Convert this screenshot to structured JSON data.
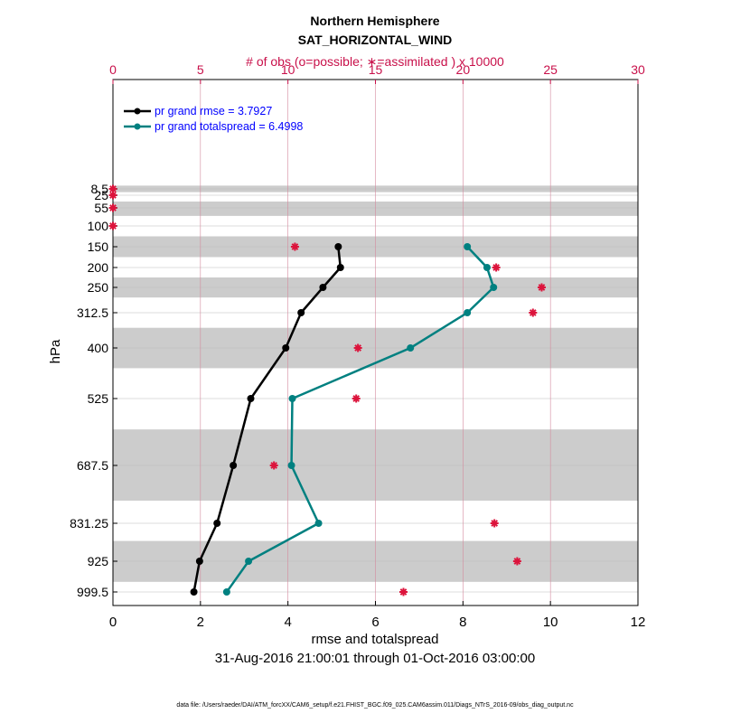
{
  "chart_data": {
    "type": "line",
    "title": "Northern Hemisphere",
    "subtitle": "SAT_HORIZONTAL_WIND",
    "top_axis_label": "# of obs (o=possible; ∗=assimilated ) x 10000",
    "xlabel": "rmse and totalspread",
    "ylabel": "hPa",
    "date_range": "31-Aug-2016 21:00:01 through 01-Oct-2016 03:00:00",
    "footnote": "data file: /Users/raeder/DAI/ATM_forcXX/CAM6_setup/f.e21.FHIST_BGC.f09_025.CAM6assim.011/Diags_NTrS_2016-09/obs_diag_output.nc",
    "xlim": [
      0,
      12
    ],
    "xticks": [
      "0",
      "2",
      "4",
      "6",
      "8",
      "10",
      "12"
    ],
    "top_xlim": [
      0,
      30
    ],
    "top_xticks": [
      "0",
      "5",
      "10",
      "15",
      "20",
      "25",
      "30"
    ],
    "levels": [
      "8.5",
      "25",
      "55",
      "100",
      "150",
      "200",
      "250",
      "312.5",
      "400",
      "525",
      "687.5",
      "831.25",
      "925",
      "999.5"
    ],
    "level_values": [
      8.5,
      25,
      55,
      100,
      150,
      200,
      250,
      312.5,
      400,
      525,
      687.5,
      831.25,
      925,
      999.5
    ],
    "gray_bands_hPa": [
      [
        0,
        17
      ],
      [
        40,
        75
      ],
      [
        125,
        175
      ],
      [
        225,
        275
      ],
      [
        350,
        450
      ],
      [
        600,
        775
      ],
      [
        875,
        975
      ]
    ],
    "series": [
      {
        "name": "pr grand rmse",
        "legend": "pr grand rmse = 3.7927",
        "color": "#000000",
        "levels": [
          150,
          200,
          250,
          312.5,
          400,
          525,
          687.5,
          831.25,
          925,
          999.5
        ],
        "values": [
          5.15,
          5.2,
          4.8,
          4.3,
          3.95,
          3.15,
          2.75,
          2.38,
          1.98,
          1.85
        ]
      },
      {
        "name": "pr grand totalspread",
        "legend": "pr grand totalspread = 6.4998",
        "color": "#008080",
        "levels": [
          150,
          200,
          250,
          312.5,
          400,
          525,
          687.5,
          831.25,
          925,
          999.5
        ],
        "values": [
          8.1,
          8.55,
          8.7,
          8.1,
          6.8,
          4.1,
          4.08,
          4.7,
          3.1,
          2.6
        ]
      }
    ],
    "obs_assimilated": {
      "color": "#dc143c",
      "scale": "x 10000",
      "levels": [
        8.5,
        25,
        55,
        100,
        150,
        200,
        250,
        312.5,
        400,
        525,
        687.5,
        831.25,
        925,
        999.5
      ],
      "values": [
        0,
        0,
        0,
        0,
        10.4,
        21.9,
        24.5,
        24.0,
        14.0,
        13.9,
        9.2,
        21.8,
        23.1,
        16.6
      ]
    },
    "legend_text_color": "#0000ff",
    "legend_position": "top-left"
  }
}
